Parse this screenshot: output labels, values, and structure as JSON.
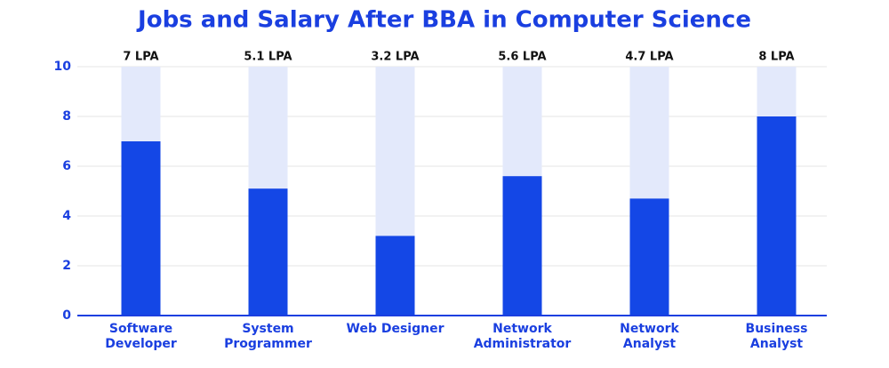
{
  "chart_data": {
    "type": "bar",
    "title": "Jobs and Salary After BBA in Computer Science",
    "categories": [
      "Software Developer",
      "System Programmer",
      "Web Designer",
      "Network Administrator",
      "Network Analyst",
      "Business Analyst"
    ],
    "values": [
      7,
      5.1,
      3.2,
      5.6,
      4.7,
      8
    ],
    "value_labels": [
      "7 LPA",
      "5.1 LPA",
      "3.2 LPA",
      "5.6 LPA",
      "4.7 LPA",
      "8 LPA"
    ],
    "color": "#1447e6",
    "ylim": [
      0,
      10
    ],
    "yticks": [
      0,
      2,
      4,
      6,
      8,
      10
    ],
    "grid": true
  }
}
